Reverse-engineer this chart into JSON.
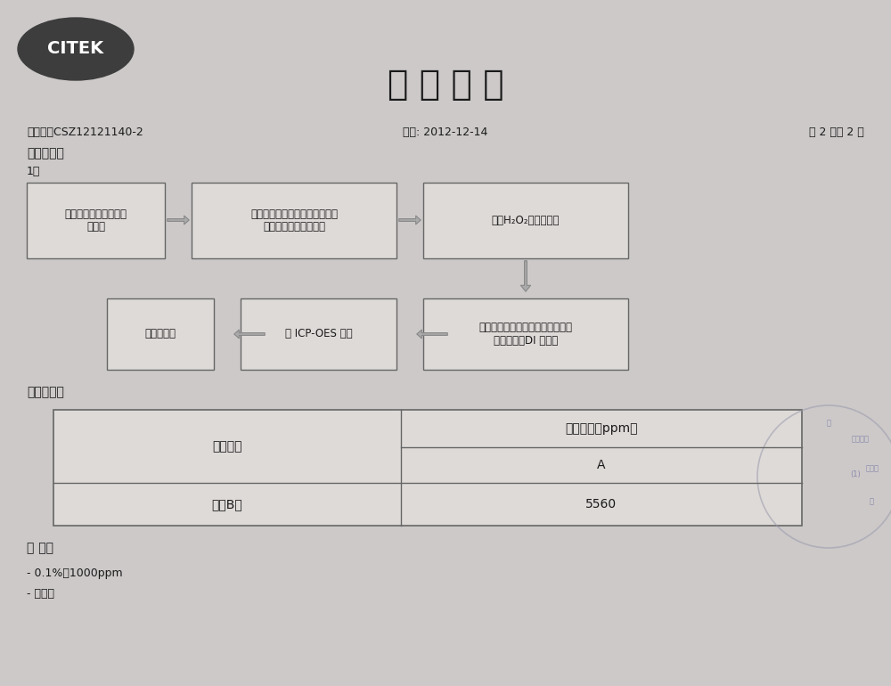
{
  "bg_color": "#cdc9c9",
  "title": "检 测 报 告",
  "title_fontsize": 30,
  "header_id": "编号：：CSZ12121140-2",
  "header_date": "日期: 2012-12-14",
  "header_page": "第 2 页共 2 页",
  "section1_label": "测试流程：",
  "step_label": "1、",
  "box1_text": "将称量好的样品放入消\n解容器",
  "box2_text": "加入相关消解液溶解，放到加热\n板加热至样品完全消解",
  "box3_text": "加入H₂O₂至样品澄清",
  "box4_text": "冷却消解液，过滤，转移消解液到\n容量瓶中，DI 水定容",
  "box5_text": "用 ICP-OES 测定",
  "box6_text": "数据，报告",
  "section2_label": "测试结果：",
  "table_col1_header": "测试项目",
  "table_col2_header": "测试结果（ppm）",
  "table_sub_header": "A",
  "table_row1_col1": "硟（B）",
  "table_row1_col2": "5560",
  "notes_label": "备 注：",
  "note1": "- 0.1%＝1000ppm",
  "note2": "- 附相片",
  "box_edge_color": "#666666",
  "box_face_color": "#dedad8",
  "text_color": "#1a1a1a",
  "citek_bg": "#3d3d3d",
  "citek_text": "#ffffff",
  "arrow_color": "#aaaaaa",
  "arrow_edge": "#888888"
}
